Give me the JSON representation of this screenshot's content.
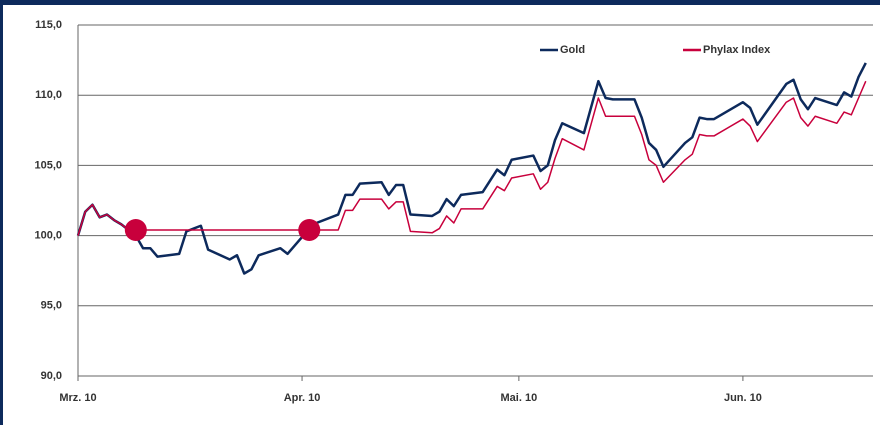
{
  "chart_data": {
    "type": "line",
    "x": [
      0,
      1,
      2,
      3,
      4,
      5,
      6,
      7,
      8,
      9,
      10,
      11,
      14,
      15,
      16,
      17,
      18,
      21,
      22,
      23,
      24,
      25,
      28,
      29,
      31,
      32,
      36,
      37,
      38,
      39,
      42,
      43,
      44,
      45,
      46,
      49,
      50,
      51,
      52,
      53,
      56,
      58,
      59,
      60,
      63,
      64,
      65,
      66,
      67,
      70,
      72,
      73,
      74,
      77,
      78,
      79,
      80,
      81,
      84,
      85,
      86,
      87,
      88,
      92,
      93,
      94,
      98,
      99,
      100,
      101,
      102,
      105,
      106,
      107,
      108,
      109
    ],
    "series": [
      {
        "name": "Gold",
        "color": "#0d2a5c",
        "values": [
          100.0,
          101.7,
          102.2,
          101.3,
          101.5,
          101.1,
          100.8,
          100.4,
          100.0,
          99.1,
          99.1,
          98.5,
          98.7,
          100.3,
          100.5,
          100.7,
          99.0,
          98.3,
          98.6,
          97.3,
          97.6,
          98.6,
          99.1,
          98.7,
          99.9,
          100.7,
          101.5,
          102.9,
          102.9,
          103.7,
          103.8,
          102.9,
          103.6,
          103.6,
          101.5,
          101.4,
          101.7,
          102.6,
          102.1,
          102.9,
          103.1,
          104.7,
          104.3,
          105.4,
          105.7,
          104.6,
          105.0,
          106.8,
          108.0,
          107.3,
          111.0,
          109.8,
          109.7,
          109.7,
          108.4,
          106.6,
          106.1,
          104.9,
          106.6,
          107.0,
          108.4,
          108.3,
          108.3,
          109.5,
          109.1,
          107.9,
          110.8,
          111.1,
          109.7,
          109.0,
          109.8,
          109.3,
          110.2,
          109.9,
          111.3,
          112.3
        ]
      },
      {
        "name": "Phylax Index",
        "color": "#c8003c",
        "values": [
          100.0,
          101.7,
          102.2,
          101.3,
          101.5,
          101.1,
          100.8,
          100.4,
          100.4,
          100.4,
          100.4,
          100.4,
          100.4,
          100.4,
          100.4,
          100.4,
          100.4,
          100.4,
          100.4,
          100.4,
          100.4,
          100.4,
          100.4,
          100.4,
          100.4,
          100.4,
          100.4,
          101.8,
          101.8,
          102.6,
          102.6,
          101.9,
          102.4,
          102.4,
          100.3,
          100.2,
          100.5,
          101.4,
          100.9,
          101.9,
          101.9,
          103.5,
          103.2,
          104.1,
          104.4,
          103.3,
          103.8,
          105.5,
          106.9,
          106.1,
          109.8,
          108.5,
          108.5,
          108.5,
          107.2,
          105.4,
          105.0,
          103.8,
          105.4,
          105.8,
          107.2,
          107.1,
          107.1,
          108.3,
          107.8,
          106.7,
          109.5,
          109.8,
          108.4,
          107.8,
          108.5,
          108.0,
          108.8,
          108.6,
          109.8,
          111.0
        ]
      }
    ],
    "highlight_points": {
      "color": "#c8003c",
      "x": [
        8,
        32
      ],
      "values": [
        100.4,
        100.4
      ]
    },
    "xlim": [
      0,
      110
    ],
    "xticks": [
      {
        "value": 0,
        "label": "Mrz. 10"
      },
      {
        "value": 31,
        "label": "Apr. 10"
      },
      {
        "value": 61,
        "label": "Mai. 10"
      },
      {
        "value": 92,
        "label": "Jun. 10"
      }
    ],
    "ylim": [
      90,
      115
    ],
    "yticks": [
      {
        "value": 90,
        "label": "90,0"
      },
      {
        "value": 95,
        "label": "95,0"
      },
      {
        "value": 100,
        "label": "100,0"
      },
      {
        "value": 105,
        "label": "105,0"
      },
      {
        "value": 110,
        "label": "110,0"
      },
      {
        "value": 115,
        "label": "115,0"
      }
    ],
    "grid": true,
    "legend": "top-right"
  }
}
